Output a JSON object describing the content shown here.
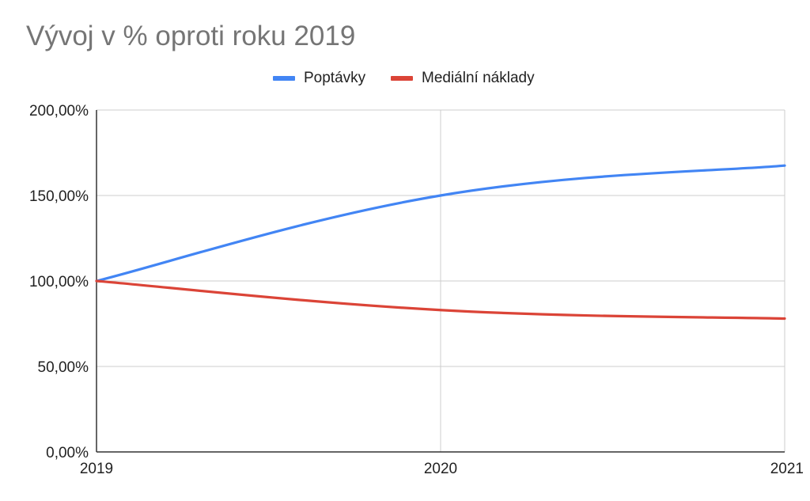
{
  "chart_data": {
    "type": "line",
    "title": "Vývoj v % oproti roku 2019",
    "xlabel": "",
    "ylabel": "",
    "categories": [
      "2019",
      "2020",
      "2021"
    ],
    "series": [
      {
        "name": "Poptávky",
        "values": [
          100,
          150,
          167.5
        ],
        "color": "#4285f4"
      },
      {
        "name": "Mediální náklady",
        "values": [
          100,
          83,
          78
        ],
        "color": "#db4437"
      }
    ],
    "ylim": [
      0,
      200
    ],
    "yticks": [
      0,
      50,
      100,
      150,
      200
    ],
    "ytick_labels": [
      "0,00%",
      "50,00%",
      "100,00%",
      "150,00%",
      "200,00%"
    ],
    "grid": true,
    "legend_position": "top",
    "smooth": true
  }
}
